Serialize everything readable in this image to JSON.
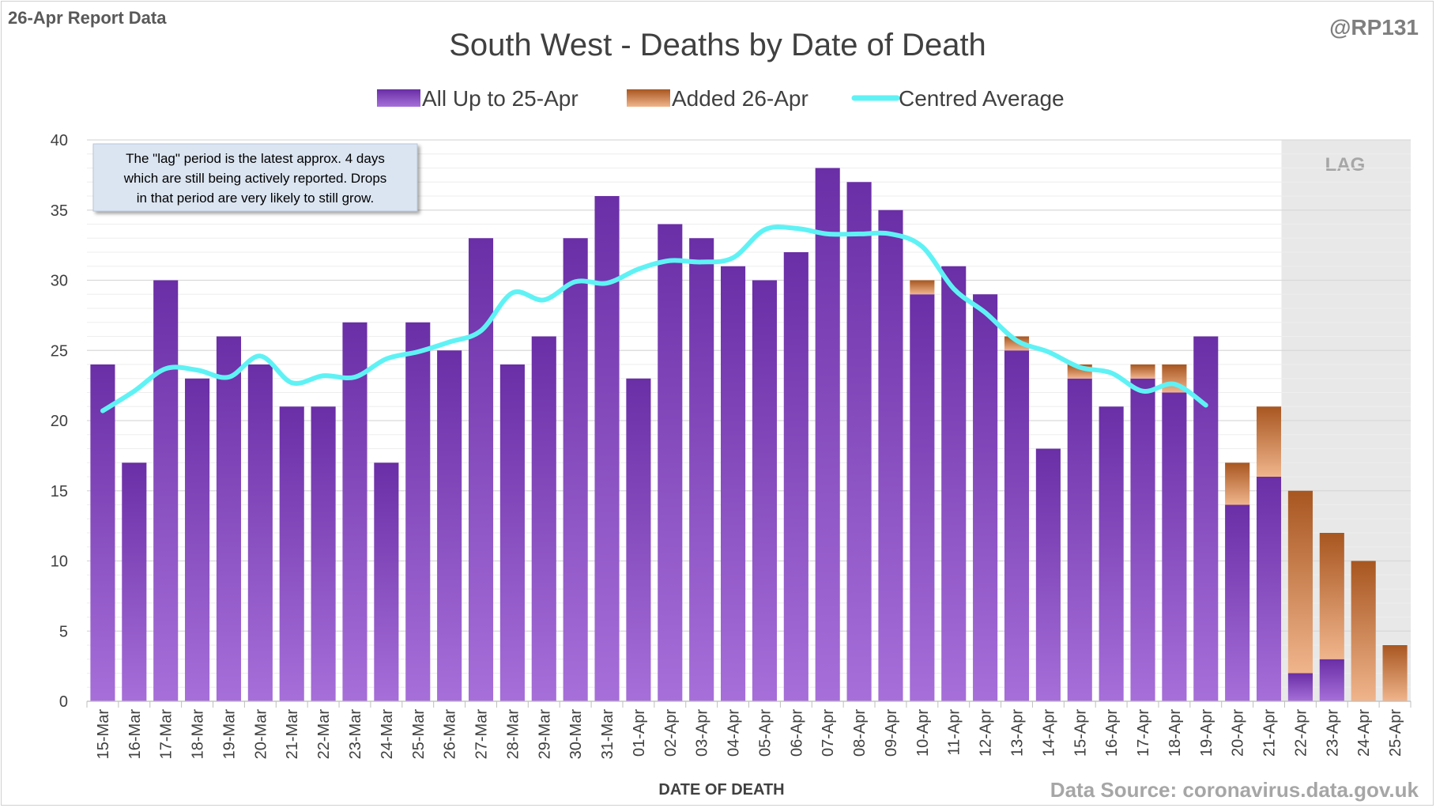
{
  "header": {
    "report_label": "26-Apr Report Data",
    "author": "@RP131",
    "source": "Data Source: coronavirus.data.gov.uk"
  },
  "annotation": {
    "lines": [
      "The \"lag\" period is the latest approx. 4 days",
      "which are still being actively reported.  Drops",
      "in that period are very likely to still grow."
    ],
    "lag_label": "LAG"
  },
  "colors": {
    "purple_top": "#6a2ea6",
    "purple_bottom": "#a66fd9",
    "orange_top": "#a85620",
    "orange_bottom": "#f0b58c",
    "average_line": "#5ff2f5",
    "lag_shade": "#e8e8e8",
    "grid_major": "#d9d9d9",
    "grid_minor": "#eeeeee",
    "note_bg": "#dbe5f1",
    "text_dark": "#404040",
    "text_grey": "#7f7f7f"
  },
  "chart_data": {
    "type": "bar",
    "stacked": true,
    "title": "South West - Deaths by Date of Death",
    "xlabel": "DATE OF DEATH",
    "ylabel": "",
    "ylim": [
      0,
      40
    ],
    "yticks": [
      0,
      5,
      10,
      15,
      20,
      25,
      30,
      35,
      40
    ],
    "legend_position": "top-center",
    "lag_region": [
      "22-Apr",
      "25-Apr"
    ],
    "categories": [
      "15-Mar",
      "16-Mar",
      "17-Mar",
      "18-Mar",
      "19-Mar",
      "20-Mar",
      "21-Mar",
      "22-Mar",
      "23-Mar",
      "24-Mar",
      "25-Mar",
      "26-Mar",
      "27-Mar",
      "28-Mar",
      "29-Mar",
      "30-Mar",
      "31-Mar",
      "01-Apr",
      "02-Apr",
      "03-Apr",
      "04-Apr",
      "05-Apr",
      "06-Apr",
      "07-Apr",
      "08-Apr",
      "09-Apr",
      "10-Apr",
      "11-Apr",
      "12-Apr",
      "13-Apr",
      "14-Apr",
      "15-Apr",
      "16-Apr",
      "17-Apr",
      "18-Apr",
      "19-Apr",
      "20-Apr",
      "21-Apr",
      "22-Apr",
      "23-Apr",
      "24-Apr",
      "25-Apr"
    ],
    "series": [
      {
        "name": "All Up to 25-Apr",
        "kind": "bar",
        "values": [
          24,
          17,
          30,
          23,
          26,
          24,
          21,
          21,
          27,
          17,
          27,
          25,
          33,
          24,
          26,
          33,
          36,
          23,
          34,
          33,
          31,
          30,
          32,
          38,
          37,
          35,
          29,
          31,
          29,
          25,
          18,
          23,
          21,
          23,
          22,
          26,
          14,
          16,
          2,
          3,
          0,
          0
        ]
      },
      {
        "name": "Added 26-Apr",
        "kind": "bar",
        "values": [
          0,
          0,
          0,
          0,
          0,
          0,
          0,
          0,
          0,
          0,
          0,
          0,
          0,
          0,
          0,
          0,
          0,
          0,
          0,
          0,
          0,
          0,
          0,
          0,
          0,
          0,
          1,
          0,
          0,
          1,
          0,
          1,
          0,
          1,
          2,
          0,
          3,
          5,
          13,
          9,
          10,
          4
        ]
      },
      {
        "name": "Centred Average",
        "kind": "line",
        "values": [
          20.7,
          22.1,
          23.7,
          23.6,
          23.1,
          24.6,
          22.7,
          23.2,
          23.1,
          24.4,
          24.9,
          25.6,
          26.4,
          29.1,
          28.6,
          29.9,
          29.8,
          30.8,
          31.4,
          31.3,
          31.6,
          33.6,
          33.7,
          33.3,
          33.3,
          33.3,
          32.4,
          29.4,
          27.7,
          25.7,
          24.9,
          23.8,
          23.4,
          22.1,
          22.6,
          21.1,
          null,
          null,
          null,
          null,
          null,
          null
        ]
      }
    ]
  }
}
